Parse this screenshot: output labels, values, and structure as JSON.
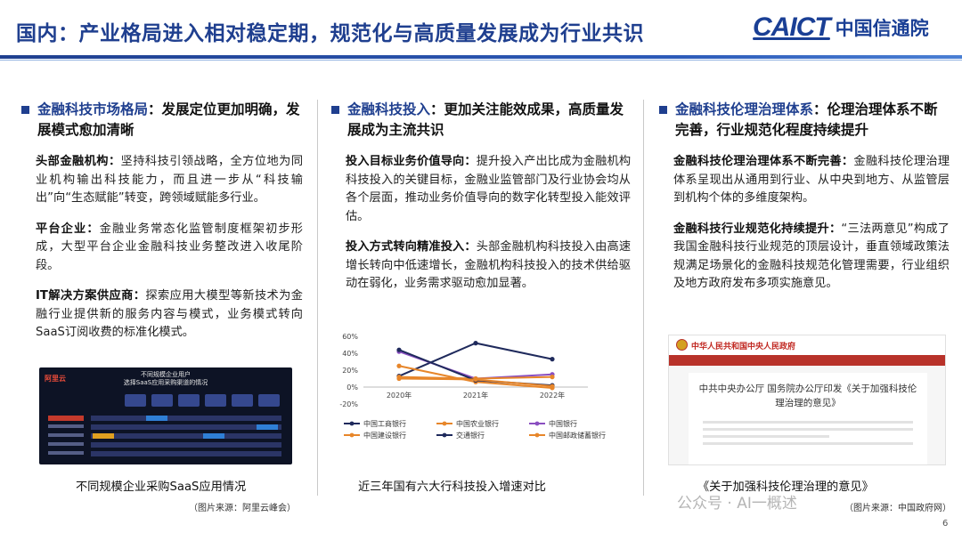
{
  "header": {
    "title": "国内：产业格局进入相对稳定期，规范化与高质量发展成为行业共识",
    "logo_en": "CAICT",
    "logo_cn": "中国信通院"
  },
  "col1": {
    "head_blue": "金融科技市场格局",
    "head_rest": "：发展定位更加明确，发展模式愈加清晰",
    "paras": [
      {
        "label": "头部金融机构：",
        "text": "坚持科技引领战略，全方位地为同业机构输出科技能力，而且进一步从“科技输出”向“生态赋能”转变，跨领域赋能多行业。"
      },
      {
        "label": "平台企业：",
        "text": "金融业务常态化监管制度框架初步形成，大型平台企业金融科技业务整改进入收尾阶段。"
      },
      {
        "label": "IT解决方案供应商：",
        "text": "探索应用大模型等新技术为金融行业提供新的服务内容与模式，业务模式转向SaaS订阅收费的标准化模式。"
      }
    ],
    "image_logo": "阿里云",
    "image_title_1": "不同规模企业用户",
    "image_title_2": "选择SaaS应用采购渠道的情况",
    "caption": "不同规模企业采购SaaS应用情况",
    "source": "（图片来源：阿里云峰会）"
  },
  "col2": {
    "head_blue": "金融科技投入",
    "head_rest": "：更加关注能效成果，高质量发展成为主流共识",
    "paras": [
      {
        "label": "投入目标业务价值导向：",
        "text": "提升投入产出比成为金融机构科技投入的关键目标，金融业监管部门及行业协会均从各个层面，推动业务价值导向的数字化转型投入能效评估。"
      },
      {
        "label": "投入方式转向精准投入：",
        "text": "头部金融机构科技投入由高速增长转向中低速增长，金融机构科技投入的技术供给驱动在弱化，业务需求驱动愈加显著。"
      }
    ],
    "caption": "近三年国有六大行科技投入增速对比"
  },
  "col3": {
    "head_blue": "金融科技伦理治理体系",
    "head_rest": "：伦理治理体系不断完善，行业规范化程度持续提升",
    "paras": [
      {
        "label": "金融科技伦理治理体系不断完善：",
        "text": "金融科技伦理治理体系呈现出从通用到行业、从中央到地方、从监管层到机构个体的多维度架构。"
      },
      {
        "label": "金融科技行业规范化持续提升：",
        "text": "“三法两意见”构成了我国金融科技行业规范的顶层设计，垂直领域政策法规满足场景化的金融科技规范化管理需要，行业组织及地方政府发布多项实施意见。"
      }
    ],
    "gov_site": "中华人民共和国中央人民政府",
    "gov_doc_title_1": "中共中央办公厅 国务院办公厅印发《关于加强科技伦",
    "gov_doc_title_2": "理治理的意见》",
    "caption": "《关于加强科技伦理治理的意见》",
    "source": "（图片来源：中国政府网）"
  },
  "watermark": "公众号 · AI一概述",
  "page_number": "6",
  "chart_data": {
    "type": "line",
    "categories": [
      "2020年",
      "2021年",
      "2022年"
    ],
    "y_ticks": [
      "60%",
      "40%",
      "20%",
      "0%",
      "-20%"
    ],
    "ylim": [
      -20,
      60
    ],
    "series": [
      {
        "name": "中国工商银行",
        "values": [
          13.0,
          52.0,
          33.0
        ],
        "color": "#1f2a5c"
      },
      {
        "name": "中国农业银行",
        "values": [
          25.0,
          6.0,
          -1.0
        ],
        "color": "#e7862a"
      },
      {
        "name": "中国银行",
        "values": [
          42.0,
          10.0,
          15.0
        ],
        "color": "#8a4fc0"
      },
      {
        "name": "中国建设银行",
        "values": [
          12.0,
          10.0,
          12.0
        ],
        "color": "#e7862a"
      },
      {
        "name": "交通银行",
        "values": [
          44.0,
          8.0,
          2.0
        ],
        "color": "#1f2a5c"
      },
      {
        "name": "中国邮政储蓄银行",
        "values": [
          10.0,
          9.0,
          1.0
        ],
        "color": "#e7862a"
      }
    ]
  }
}
